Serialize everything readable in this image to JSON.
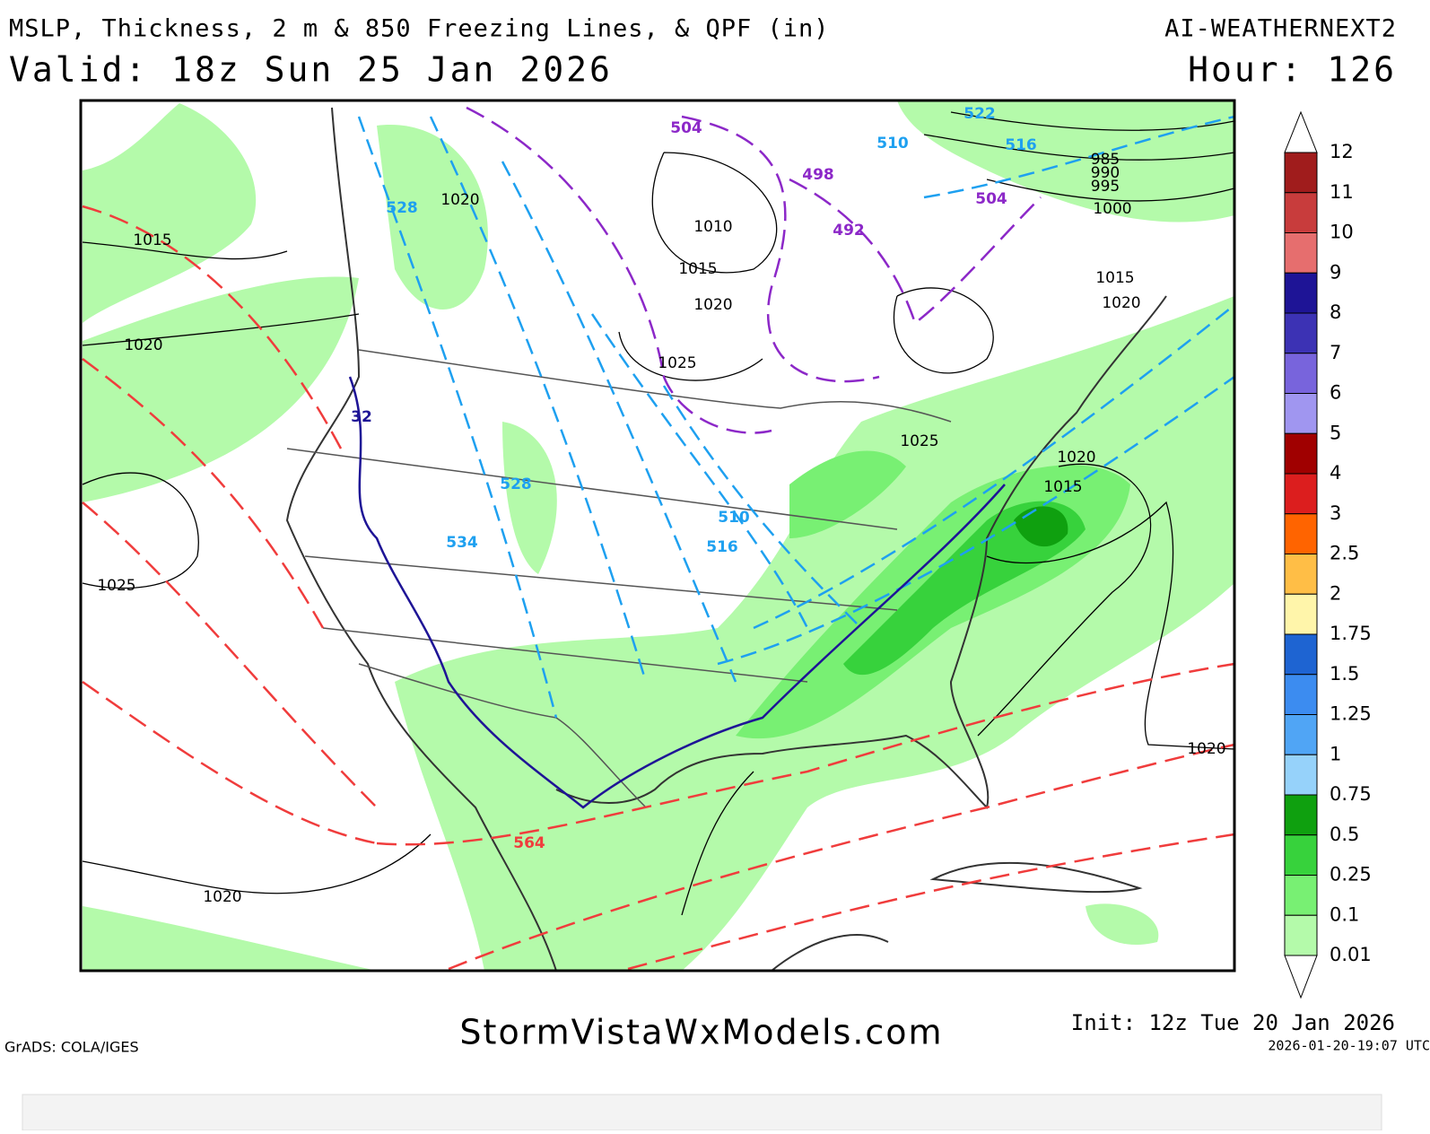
{
  "header": {
    "title": "MSLP, Thickness, 2 m & 850 Freezing Lines, & QPF (in)",
    "model": "AI-WEATHERNEXT2",
    "valid": "Valid: 18z Sun 25 Jan 2026",
    "hour": "Hour: 126"
  },
  "colorbar": {
    "labels": [
      12,
      11,
      10,
      9,
      8,
      7,
      6,
      5,
      4,
      3,
      2.5,
      2,
      1.75,
      1.5,
      1.25,
      1,
      0.75,
      0.5,
      0.25,
      0.1,
      0.01
    ],
    "colors": [
      "#a01c1c",
      "#c83c3c",
      "#e66e6e",
      "#1e1496",
      "#3c32b4",
      "#7864dc",
      "#a096f0",
      "#a00000",
      "#dc1e1e",
      "#ff6400",
      "#ffbe46",
      "#fff5aa",
      "#1e64d2",
      "#3c8cf0",
      "#50a5f5",
      "#96d2fa",
      "#0fa00f",
      "#37d23c",
      "#78f073",
      "#b4faaa"
    ]
  },
  "contour_labels": {
    "mslp": [
      1015,
      1020,
      1025,
      1020,
      1020,
      1010,
      1015,
      1020,
      1025,
      1025,
      1020,
      1015,
      1020,
      985,
      990,
      995,
      1000,
      1015,
      1020
    ],
    "thickness_blue": [
      522,
      516,
      510,
      528,
      528,
      534,
      510,
      516
    ],
    "thickness_purple": [
      504,
      498,
      492,
      504
    ],
    "thickness_red": [
      564
    ],
    "freezing": [
      32
    ]
  },
  "footer": {
    "site": "StormVistaWxModels.com",
    "grads": "GrADS: COLA/IGES",
    "init": "Init: 12z Tue 20 Jan 2026",
    "stamp": "2026-01-20-19:07 UTC"
  }
}
